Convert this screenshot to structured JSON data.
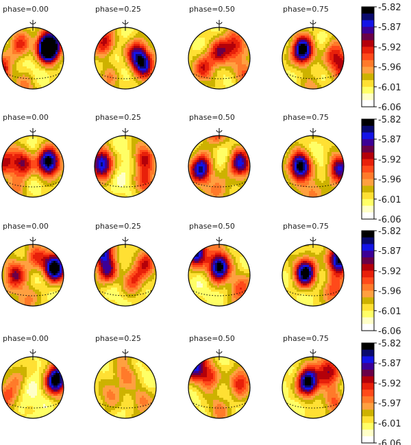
{
  "rows": [
    {
      "phases": [
        "phase=0.00",
        "phase=0.25",
        "phase=0.50",
        "phase=0.75"
      ],
      "colorbar_ticks": [
        "-5.82",
        "-5.87",
        "-5.92",
        "-5.96",
        "-6.01",
        "-6.06"
      ]
    },
    {
      "phases": [
        "phase=0.00",
        "phase=0.25",
        "phase=0.50",
        "phase=0.75"
      ],
      "colorbar_ticks": [
        "-5.82",
        "-5.87",
        "-5.92",
        "-5.96",
        "-6.01",
        "-6.06"
      ]
    },
    {
      "phases": [
        "phase=0.00",
        "phase=0.25",
        "phase=0.50",
        "phase=0.75"
      ],
      "colorbar_ticks": [
        "-5.82",
        "-5.87",
        "-5.92",
        "-5.96",
        "-6.01",
        "-6.06"
      ]
    },
    {
      "phases": [
        "phase=0.00",
        "phase=0.25",
        "phase=0.50",
        "phase=0.75"
      ],
      "colorbar_ticks": [
        "-5.82",
        "-5.87",
        "-5.92",
        "-5.97",
        "-6.01",
        "-6.06"
      ]
    }
  ],
  "colormap": [
    "#ffffff",
    "#ffffc8",
    "#ffff66",
    "#ffe033",
    "#cdb200",
    "#ffa040",
    "#ff7a2a",
    "#ff4a1a",
    "#e8200a",
    "#b4000a",
    "#6a0048",
    "#3c0096",
    "#1414e6",
    "#0a0a6e",
    "#000000"
  ],
  "spot_maps": [
    [
      [
        [
          -25,
          25,
          0.45
        ],
        [
          32,
          18,
          0.5
        ],
        [
          30,
          22,
          1.0
        ],
        [
          -62,
          -25,
          0.55
        ],
        [
          -15,
          -55,
          0.25
        ]
      ],
      [
        [
          20,
          10,
          0.55
        ],
        [
          35,
          -12,
          0.7
        ],
        [
          -40,
          30,
          0.5
        ],
        [
          -30,
          -40,
          0.25
        ]
      ],
      [
        [
          0,
          10,
          0.55
        ],
        [
          -30,
          -20,
          0.45
        ],
        [
          30,
          25,
          0.5
        ],
        [
          50,
          -30,
          0.35
        ]
      ],
      [
        [
          -20,
          15,
          1.0
        ],
        [
          40,
          5,
          0.45
        ],
        [
          60,
          -20,
          0.4
        ],
        [
          0,
          -55,
          0.2
        ]
      ]
    ],
    [
      [
        [
          30,
          8,
          1.0
        ],
        [
          -20,
          5,
          0.6
        ],
        [
          -55,
          10,
          0.45
        ],
        [
          -30,
          -45,
          0.2
        ]
      ],
      [
        [
          -45,
          5,
          0.85
        ],
        [
          35,
          15,
          0.5
        ],
        [
          40,
          -30,
          0.4
        ],
        [
          0,
          70,
          0.05
        ]
      ],
      [
        [
          -35,
          -5,
          0.85
        ],
        [
          40,
          5,
          0.75
        ],
        [
          -10,
          70,
          0.45
        ],
        [
          0,
          -45,
          0.3
        ]
      ],
      [
        [
          -25,
          0,
          1.0
        ],
        [
          50,
          -5,
          0.7
        ],
        [
          10,
          70,
          0.1
        ],
        [
          0,
          -50,
          0.3
        ]
      ]
    ],
    [
      [
        [
          -35,
          0,
          0.6
        ],
        [
          42,
          15,
          1.0
        ],
        [
          5,
          35,
          0.4
        ],
        [
          -10,
          -45,
          0.3
        ]
      ],
      [
        [
          -35,
          10,
          0.6
        ],
        [
          15,
          -10,
          0.45
        ],
        [
          -45,
          55,
          0.85
        ],
        [
          40,
          25,
          0.45
        ]
      ],
      [
        [
          0,
          15,
          1.0
        ],
        [
          -45,
          45,
          0.8
        ],
        [
          40,
          -25,
          0.4
        ],
        [
          0,
          70,
          0.1
        ]
      ],
      [
        [
          -15,
          5,
          1.0
        ],
        [
          50,
          30,
          0.9
        ],
        [
          40,
          -30,
          0.4
        ],
        [
          0,
          70,
          0.05
        ]
      ]
    ],
    [
      [
        [
          45,
          15,
          1.0
        ],
        [
          -30,
          20,
          0.25
        ],
        [
          -50,
          -20,
          0.35
        ],
        [
          -10,
          70,
          0.0
        ]
      ],
      [
        [
          0,
          20,
          0.35
        ],
        [
          -30,
          -15,
          0.3
        ],
        [
          30,
          -25,
          0.3
        ],
        [
          0,
          70,
          0.15
        ]
      ],
      [
        [
          -20,
          20,
          0.5
        ],
        [
          40,
          10,
          0.5
        ],
        [
          -50,
          45,
          0.75
        ],
        [
          0,
          -40,
          0.3
        ]
      ],
      [
        [
          -10,
          10,
          1.0
        ],
        [
          30,
          30,
          0.6
        ],
        [
          40,
          -30,
          0.35
        ],
        [
          0,
          70,
          0.1
        ]
      ]
    ]
  ]
}
